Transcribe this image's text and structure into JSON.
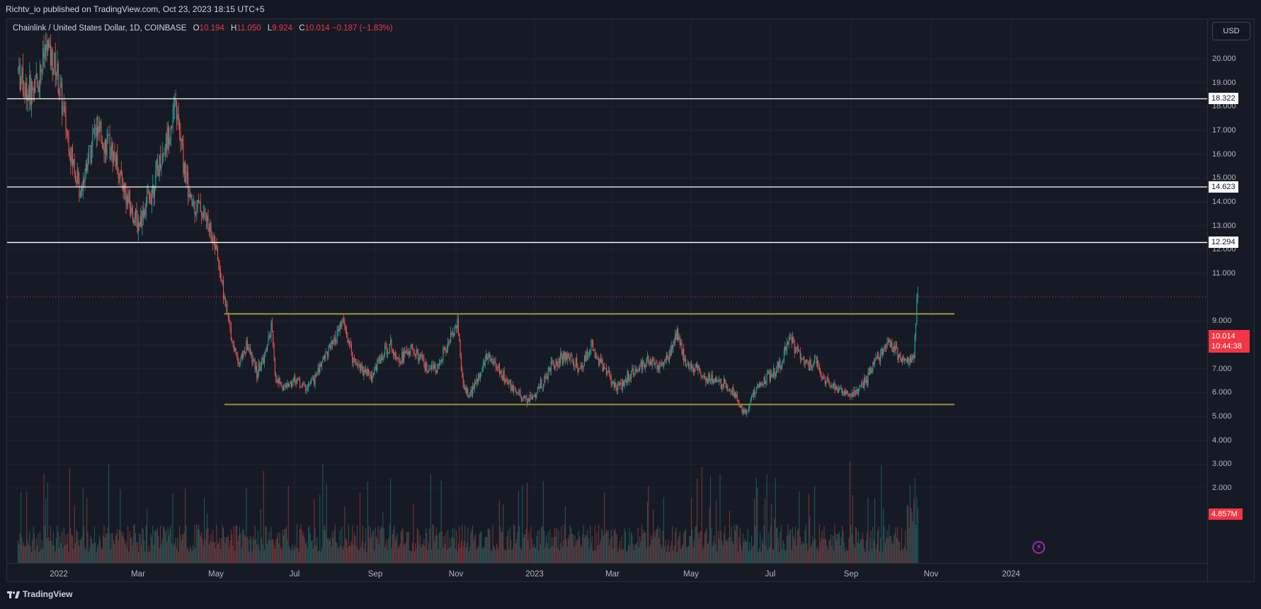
{
  "header": {
    "publish_line": "Richtv_io published on TradingView.com, Oct 23, 2023 18:15 UTC+5"
  },
  "legend": {
    "symbol": "Chainlink / United States Dollar, 1D, COINBASE",
    "o_label": "O",
    "o_value": "10.194",
    "h_label": "H",
    "h_value": "11.050",
    "l_label": "L",
    "l_value": "9.924",
    "c_label": "C",
    "c_value": "10.014",
    "change": "−0.187 (−1.83%)"
  },
  "currency_button": "USD",
  "price_axis": {
    "ticks": [
      "20.000",
      "19.000",
      "18.000",
      "17.000",
      "16.000",
      "15.000",
      "14.000",
      "13.000",
      "12.000",
      "11.000",
      "9.000",
      "8.000",
      "7.000",
      "6.000",
      "5.000",
      "4.000",
      "3.000",
      "2.000"
    ]
  },
  "time_axis": {
    "labels": [
      "2022",
      "Mar",
      "May",
      "Jul",
      "Sep",
      "Nov",
      "2023",
      "Mar",
      "May",
      "Jul",
      "Sep",
      "Nov",
      "2024"
    ]
  },
  "horizontal_lines": [
    {
      "label": "18.322",
      "value": 18.322,
      "color": "#ffffff"
    },
    {
      "label": "14.623",
      "value": 14.623,
      "color": "#ffffff"
    },
    {
      "label": "12.294",
      "value": 12.294,
      "color": "#ffffff"
    }
  ],
  "range_lines": [
    {
      "value": 9.3,
      "color": "#8d8a35"
    },
    {
      "value": 5.5,
      "color": "#8d8a35"
    }
  ],
  "last_price": {
    "price": "10.014",
    "countdown": "10:44:38",
    "value": 10.014
  },
  "volume_label": "4.857M",
  "footer": {
    "brand": "TradingView"
  },
  "colors": {
    "up": "#26a69a",
    "down": "#ef5350",
    "bg": "#161a25",
    "grid": "#1f2433"
  },
  "chart_data": {
    "type": "candlestick",
    "ylim": [
      1.6,
      21.2
    ],
    "anchors": [
      [
        0,
        19.5
      ],
      [
        10,
        18.5
      ],
      [
        20,
        19
      ],
      [
        30,
        20.5
      ],
      [
        40,
        19.5
      ],
      [
        55,
        16
      ],
      [
        65,
        14.5
      ],
      [
        80,
        17
      ],
      [
        90,
        16.5
      ],
      [
        100,
        16
      ],
      [
        115,
        14
      ],
      [
        125,
        13
      ],
      [
        140,
        14.5
      ],
      [
        155,
        16.5
      ],
      [
        165,
        18
      ],
      [
        172,
        16
      ],
      [
        180,
        14
      ],
      [
        190,
        13.8
      ],
      [
        200,
        13
      ],
      [
        210,
        11.5
      ],
      [
        218,
        9.5
      ],
      [
        225,
        8
      ],
      [
        232,
        7.3
      ],
      [
        240,
        8
      ],
      [
        250,
        6.8
      ],
      [
        258,
        7.5
      ],
      [
        265,
        8.7
      ],
      [
        270,
        6.5
      ],
      [
        280,
        6.2
      ],
      [
        290,
        6.6
      ],
      [
        300,
        6.2
      ],
      [
        310,
        6.5
      ],
      [
        320,
        7.5
      ],
      [
        330,
        8
      ],
      [
        340,
        9
      ],
      [
        350,
        7.5
      ],
      [
        360,
        7
      ],
      [
        370,
        6.7
      ],
      [
        380,
        7.5
      ],
      [
        390,
        8
      ],
      [
        400,
        7.4
      ],
      [
        410,
        7.8
      ],
      [
        420,
        7.5
      ],
      [
        430,
        6.8
      ],
      [
        440,
        7.2
      ],
      [
        450,
        8
      ],
      [
        460,
        9
      ],
      [
        465,
        6.5
      ],
      [
        472,
        5.8
      ],
      [
        480,
        6.5
      ],
      [
        490,
        7.5
      ],
      [
        500,
        7.2
      ],
      [
        510,
        6.5
      ],
      [
        520,
        6
      ],
      [
        530,
        5.7
      ],
      [
        540,
        5.8
      ],
      [
        550,
        6.5
      ],
      [
        560,
        7.2
      ],
      [
        570,
        7.5
      ],
      [
        580,
        7.4
      ],
      [
        590,
        7
      ],
      [
        600,
        8
      ],
      [
        610,
        7.3
      ],
      [
        620,
        6.6
      ],
      [
        630,
        6.2
      ],
      [
        640,
        6.8
      ],
      [
        650,
        7
      ],
      [
        660,
        7.4
      ],
      [
        670,
        7.1
      ],
      [
        680,
        7.5
      ],
      [
        690,
        8.4
      ],
      [
        700,
        7.2
      ],
      [
        710,
        7
      ],
      [
        720,
        6.7
      ],
      [
        730,
        6.5
      ],
      [
        740,
        6.3
      ],
      [
        750,
        6
      ],
      [
        755,
        5.4
      ],
      [
        762,
        5.2
      ],
      [
        770,
        6
      ],
      [
        780,
        6.5
      ],
      [
        790,
        6.8
      ],
      [
        800,
        7.3
      ],
      [
        808,
        8.4
      ],
      [
        815,
        7.8
      ],
      [
        825,
        7.2
      ],
      [
        835,
        7.3
      ],
      [
        845,
        6.5
      ],
      [
        855,
        6.2
      ],
      [
        865,
        6
      ],
      [
        875,
        5.9
      ],
      [
        885,
        6.3
      ],
      [
        893,
        6.9
      ],
      [
        900,
        7.5
      ],
      [
        910,
        8.1
      ],
      [
        920,
        7.6
      ],
      [
        930,
        7.3
      ],
      [
        938,
        7.5
      ],
      [
        942,
        10.5
      ]
    ],
    "horizontal_levels": [
      18.322,
      14.623,
      12.294
    ],
    "range_levels": [
      9.3,
      5.5
    ]
  }
}
